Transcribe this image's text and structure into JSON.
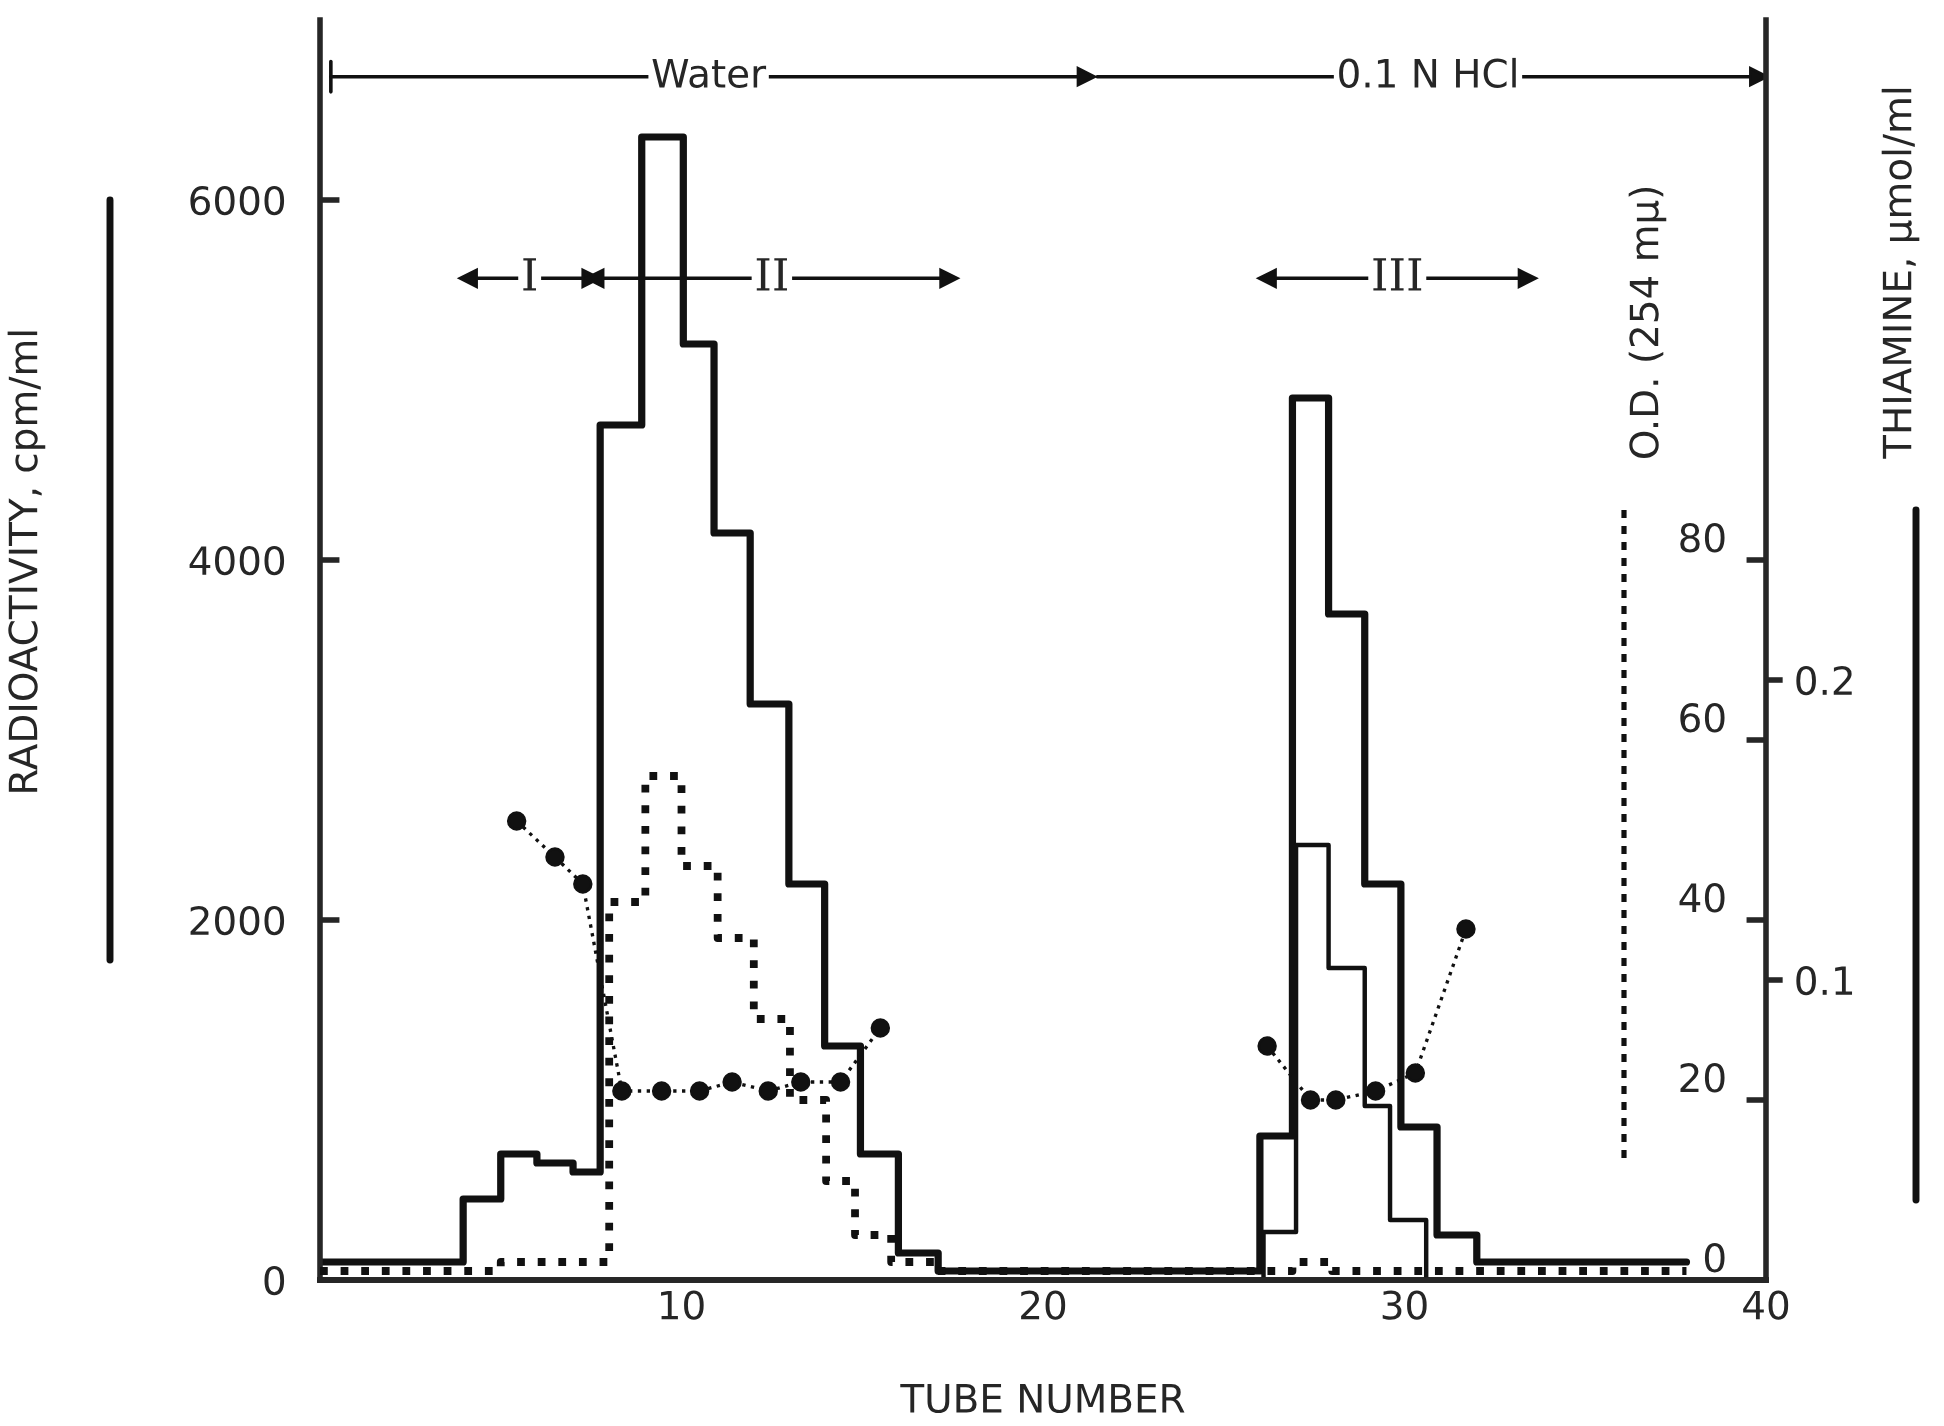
{
  "chart_data": {
    "type": "step",
    "xlabel": "TUBE NUMBER",
    "ylabel": "RADIOACTIVITY, cpm/ml",
    "y2label": "O.D. (254 mμ)",
    "y3label": "THIAMINE, μmol/ml",
    "annotations": [
      "Water",
      "0.1 N HCl",
      "I",
      "II",
      "III"
    ],
    "xlim": [
      0,
      40
    ],
    "xticks": [
      10,
      20,
      30,
      40
    ],
    "ylim": [
      0,
      7000
    ],
    "yticks": [
      0,
      2000,
      4000,
      6000
    ],
    "y2lim": [
      0,
      140
    ],
    "y2ticks": [
      0,
      20,
      40,
      60,
      80
    ],
    "y3lim": [
      0,
      0.42
    ],
    "y3ticks": [
      0.1,
      0.2
    ],
    "series": [
      {
        "axis": "y",
        "color": "#111111",
        "line_style": "solid",
        "x": [
          0,
          3.96,
          5,
          6,
          7,
          7.75,
          8.9,
          10.05,
          10.9,
          11.9,
          12.97,
          13.96,
          14.95,
          16,
          17.1,
          26,
          26.9,
          27.9,
          28.9,
          29.9,
          30.9,
          32,
          37.8
        ],
        "values": [
          100,
          450,
          700,
          650,
          600,
          4750,
          6350,
          5200,
          4150,
          3200,
          2200,
          1300,
          700,
          150,
          50,
          800,
          4900,
          3700,
          2200,
          850,
          250,
          100,
          100
        ]
      },
      {
        "axis": "y2",
        "color": "#111111",
        "line_style": "dotted",
        "x": [
          0,
          5,
          8,
          9,
          10,
          11,
          12,
          13,
          14,
          14.8,
          15.8,
          17,
          26.9,
          28,
          30,
          37.8
        ],
        "values": [
          1,
          2,
          42,
          56,
          46,
          38,
          29,
          20,
          11,
          5,
          2,
          1,
          2,
          1,
          1,
          1
        ]
      },
      {
        "axis": "y3",
        "color": "#111111",
        "line_style": "solid",
        "x": [
          25,
          26.1,
          27,
          27.9,
          28.9,
          29.6,
          30.6,
          33
        ],
        "values": [
          0,
          0.016,
          0.145,
          0.104,
          0.058,
          0.02,
          0,
          0
        ]
      },
      {
        "type": "line",
        "axis": "y",
        "color": "#111111",
        "line_style": "dotted",
        "marker": "circle",
        "x": [
          5.44,
          6.5,
          7.27,
          8.35,
          9.45,
          10.5,
          11.4,
          12.4,
          13.3,
          14.4,
          15.5,
          20,
          26.2,
          27.4,
          28.1,
          29.2,
          30.3,
          31.7
        ],
        "values": [
          2550,
          2350,
          2200,
          1050,
          1050,
          1050,
          1100,
          1050,
          1100,
          1100,
          1400,
          null,
          1300,
          1000,
          1000,
          1050,
          1150,
          1950
        ]
      }
    ]
  }
}
